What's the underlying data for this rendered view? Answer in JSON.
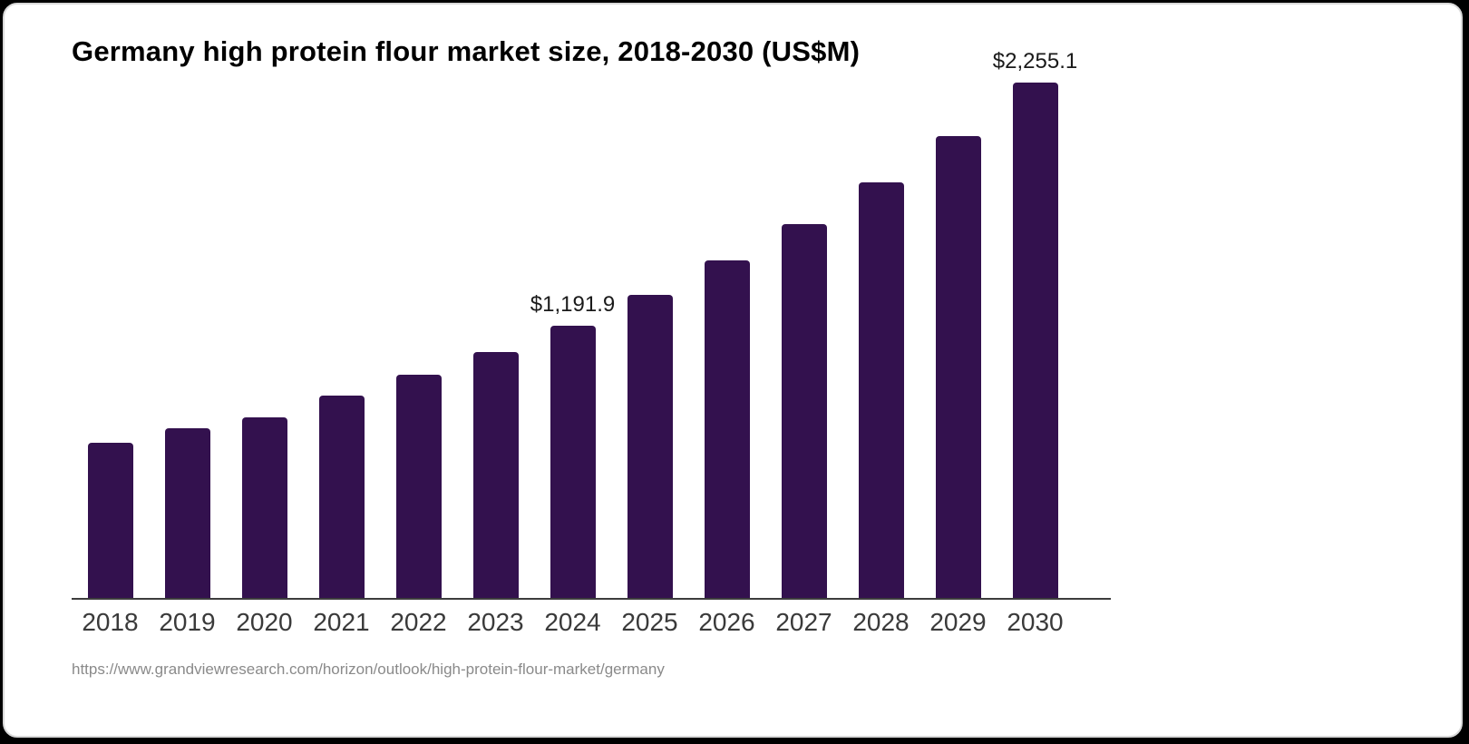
{
  "page": {
    "outer_background": "#000000",
    "card_background": "#ffffff",
    "card_border_color": "#d9d9d9"
  },
  "chart_data": {
    "type": "bar",
    "title": "Germany high protein flour market size, 2018-2030 (US$M)",
    "categories": [
      "2018",
      "2019",
      "2020",
      "2021",
      "2022",
      "2023",
      "2024",
      "2025",
      "2026",
      "2027",
      "2028",
      "2029",
      "2030"
    ],
    "values": [
      677,
      744,
      792,
      884,
      975,
      1075,
      1191.9,
      1325,
      1477,
      1636,
      1819,
      2022,
      2255.1
    ],
    "data_labels": {
      "2024": "$1,191.9",
      "2030": "$2,255.1"
    },
    "bar_color": "#33114E",
    "axis_line_color": "#3d3d3d",
    "tick_label_color": "#3a3a3a",
    "data_label_color": "#1a1a1a",
    "xlabel": "",
    "ylabel": "",
    "ylim": [
      0,
      2255.1
    ],
    "grid": false,
    "legend": "none"
  },
  "source": {
    "url": "https://www.grandviewresearch.com/horizon/outlook/high-protein-flour-market/germany"
  }
}
